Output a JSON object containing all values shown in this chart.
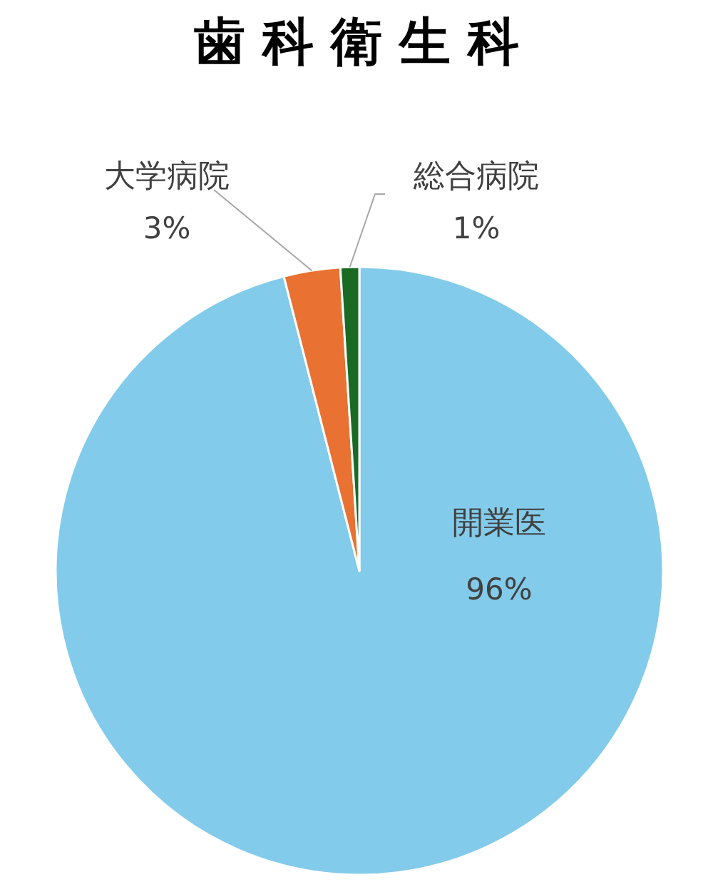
{
  "chart_data": {
    "type": "pie",
    "title": "歯科衛生科",
    "categories": [
      "開業医",
      "大学病院",
      "総合病院"
    ],
    "values": [
      96,
      3,
      1
    ],
    "colors": [
      "#83cbeb",
      "#e97132",
      "#196b24"
    ],
    "value_labels": [
      "96%",
      "3%",
      "1%"
    ]
  }
}
